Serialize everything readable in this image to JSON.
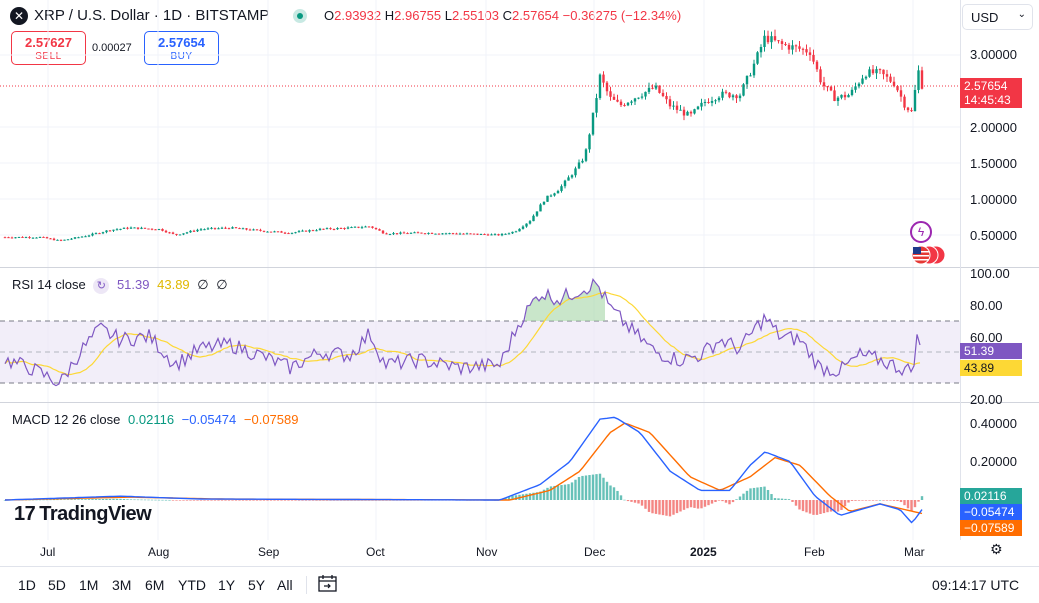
{
  "header": {
    "symbol_title": "XRP / U.S. Dollar · 1D · BITSTAMP",
    "ohlc": {
      "o_label": "O",
      "o_value": "2.93932",
      "h_label": "H",
      "h_value": "2.96755",
      "l_label": "L",
      "l_value": "2.55103",
      "c_label": "C",
      "c_value": "2.57654",
      "change": "−0.36275 (−12.34%)"
    }
  },
  "trade": {
    "sell_price": "2.57627",
    "sell_label": "SELL",
    "spread": "0.00027",
    "buy_price": "2.57654",
    "buy_label": "BUY"
  },
  "currency_select": "USD",
  "price_axis": {
    "ticks": [
      "3.00000",
      "2.00000",
      "1.50000",
      "1.00000",
      "0.50000"
    ],
    "last_price": "2.57654",
    "countdown": "14:45:43"
  },
  "rsi": {
    "title": "RSI 14 close",
    "value": "51.39",
    "ma_value": "43.89",
    "na1": "∅",
    "na2": "∅",
    "ticks": [
      "100.00",
      "80.00",
      "60.00",
      "20.00"
    ]
  },
  "macd": {
    "title": "MACD 12 26 close",
    "hist_value": "0.02116",
    "macd_value": "−0.05474",
    "signal_value": "−0.07589",
    "ticks": [
      "0.40000",
      "0.20000"
    ]
  },
  "brand": {
    "name": "TradingView"
  },
  "time_axis": {
    "labels": [
      "Jul",
      "Aug",
      "Sep",
      "Oct",
      "Nov",
      "Dec",
      "2025",
      "Feb",
      "Mar"
    ]
  },
  "ranges": [
    "1D",
    "5D",
    "1M",
    "3M",
    "6M",
    "YTD",
    "1Y",
    "5Y",
    "All"
  ],
  "clock": "09:14:17 UTC",
  "colors": {
    "up": "#089981",
    "down": "#f23645",
    "rsi_line": "#7e57c2",
    "rsi_ma": "#fdd835",
    "macd_line": "#2962ff",
    "signal_line": "#ff6d00",
    "last_price_tag": "#f23645"
  },
  "icons": [
    "close-icon",
    "market-open-icon",
    "chevron-down-icon",
    "refresh-icon",
    "lightning-icon",
    "flag-icon",
    "gear-icon",
    "calendar-icon"
  ]
}
